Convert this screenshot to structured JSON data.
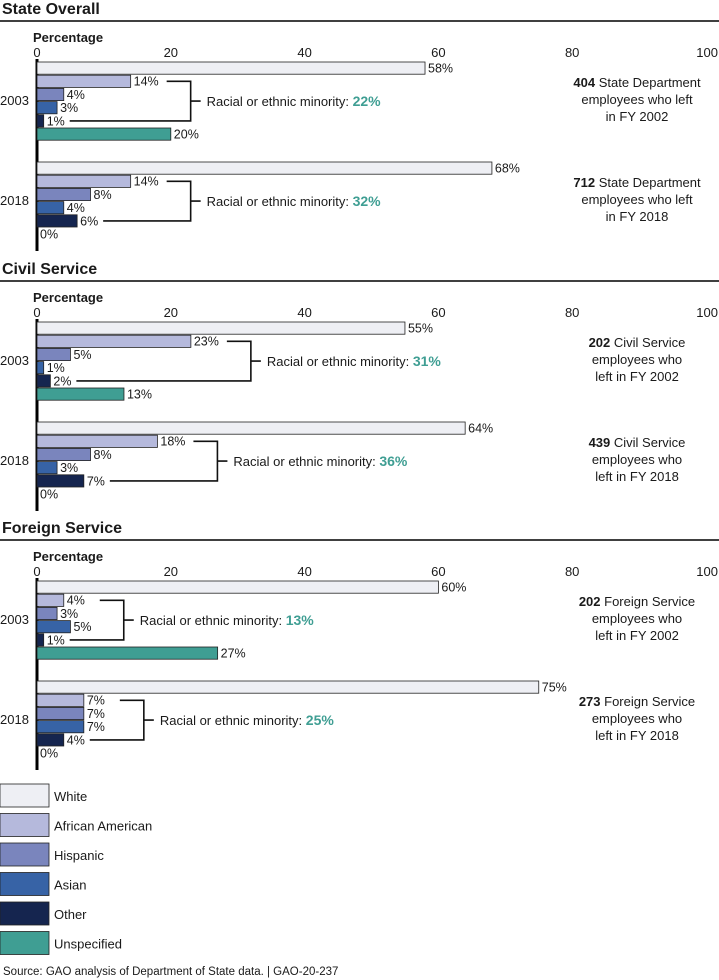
{
  "chart_data": {
    "type": "bar",
    "orientation": "horizontal",
    "axis_title": "Percentage",
    "xlim": [
      0,
      100
    ],
    "ticks": [
      0,
      20,
      40,
      60,
      80,
      100
    ],
    "minority_label": "Racial or ethnic minority: ",
    "categories": [
      "White",
      "African American",
      "Hispanic",
      "Asian",
      "Other",
      "Unspecified"
    ],
    "colors": {
      "White": "#eeeff4",
      "African American": "#b5b9dc",
      "Hispanic": "#7a85bd",
      "Asian": "#3763a6",
      "Other": "#15254f",
      "Unspecified": "#3f9e93"
    },
    "panels": [
      {
        "title": "State Overall",
        "groups": [
          {
            "year": "2003",
            "values": [
              58,
              14,
              4,
              3,
              1,
              20
            ],
            "labels": [
              "58%",
              "14%",
              "4%",
              "3%",
              "1%",
              "20%"
            ],
            "minority": "22%",
            "note_count": "404",
            "note_lines": [
              "State Department",
              "employees who left",
              "in FY 2002"
            ]
          },
          {
            "year": "2018",
            "values": [
              68,
              14,
              8,
              4,
              6,
              0
            ],
            "labels": [
              "68%",
              "14%",
              "8%",
              "4%",
              "6%",
              "0%"
            ],
            "minority": "32%",
            "note_count": "712",
            "note_lines": [
              "State Department",
              "employees who left",
              "in FY 2018"
            ]
          }
        ]
      },
      {
        "title": "Civil Service",
        "groups": [
          {
            "year": "2003",
            "values": [
              55,
              23,
              5,
              1,
              2,
              13
            ],
            "labels": [
              "55%",
              "23%",
              "5%",
              "1%",
              "2%",
              "13%"
            ],
            "minority": "31%",
            "note_count": "202",
            "note_lines": [
              "Civil Service",
              "employees who",
              "left  in FY 2002"
            ]
          },
          {
            "year": "2018",
            "values": [
              64,
              18,
              8,
              3,
              7,
              0
            ],
            "labels": [
              "64%",
              "18%",
              "8%",
              "3%",
              "7%",
              "0%"
            ],
            "minority": "36%",
            "note_count": "439",
            "note_lines": [
              "Civil Service",
              "employees who",
              "left in FY 2018"
            ]
          }
        ]
      },
      {
        "title": "Foreign Service",
        "groups": [
          {
            "year": "2003",
            "values": [
              60,
              4,
              3,
              5,
              1,
              27
            ],
            "labels": [
              "60%",
              "4%",
              "3%",
              "5%",
              "1%",
              "27%"
            ],
            "minority": "13%",
            "note_count": "202",
            "note_lines": [
              "Foreign Service",
              "employees who",
              "left in FY 2002"
            ]
          },
          {
            "year": "2018",
            "values": [
              75,
              7,
              7,
              7,
              4,
              0
            ],
            "labels": [
              "75%",
              "7%",
              "7%",
              "7%",
              "4%",
              "0%"
            ],
            "minority": "25%",
            "note_count": "273",
            "note_lines": [
              "Foreign Service",
              "employees who",
              "left in FY 2018"
            ]
          }
        ]
      }
    ],
    "legend": [
      "White",
      "African American",
      "Hispanic",
      "Asian",
      "Other",
      "Unspecified"
    ],
    "legend_placement": "bottom-left",
    "grid": false
  },
  "source": "Source: GAO analysis of Department of State data.  |  GAO-20-237"
}
